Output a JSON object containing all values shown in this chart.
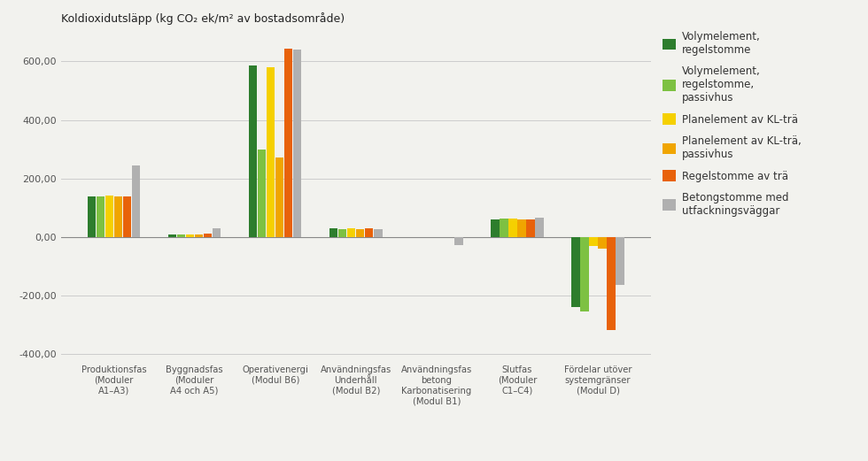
{
  "title": "Koldioxidutsläpp (kg CO₂ ek/m² av bostadsområde)",
  "series_names": [
    "Volymelement,\nregelstomme",
    "Volymelement,\nregelstomme,\npassivhus",
    "Planelement av KL-trä",
    "Planelement av KL-trä,\npassivhus",
    "Regelstomme av trä",
    "Betongstomme med\nutfackningsväggar"
  ],
  "series_colors": [
    "#2d7d2d",
    "#7dc142",
    "#f5d000",
    "#f0a500",
    "#e8620a",
    "#b0b0b0"
  ],
  "categories": [
    "Produktionsfas\n(Moduler\nA1–A3)",
    "Byggnadsfas\n(Moduler\nA4 och A5)",
    "Operativenergi\n(Modul B6)",
    "Användningsfas\nUnderhåll\n(Modul B2)",
    "Användningsfas\nbetong\nKarbonatisering\n(Modul B1)",
    "Slutfas\n(Moduler\nC1–C4)",
    "Fördelar utöver\nsystemgränser\n(Modul D)"
  ],
  "series_values": [
    [
      138,
      8,
      585,
      28,
      0,
      60,
      -240
    ],
    [
      138,
      8,
      300,
      27,
      0,
      62,
      -255
    ],
    [
      140,
      8,
      580,
      28,
      0,
      62,
      -30
    ],
    [
      137,
      8,
      270,
      25,
      0,
      60,
      -40
    ],
    [
      138,
      12,
      645,
      28,
      0,
      60,
      -320
    ],
    [
      243,
      28,
      640,
      26,
      -28,
      65,
      -165
    ]
  ],
  "ylim": [
    -420,
    700
  ],
  "yticks": [
    -400,
    -200,
    0,
    200,
    400,
    600
  ],
  "ytick_labels": [
    "-400,00",
    "-200,00",
    "0,00",
    "200,00",
    "400,00",
    "600,00"
  ],
  "bg_color": "#f2f2ee",
  "grid_color": "#cccccc",
  "bar_width": 0.11
}
